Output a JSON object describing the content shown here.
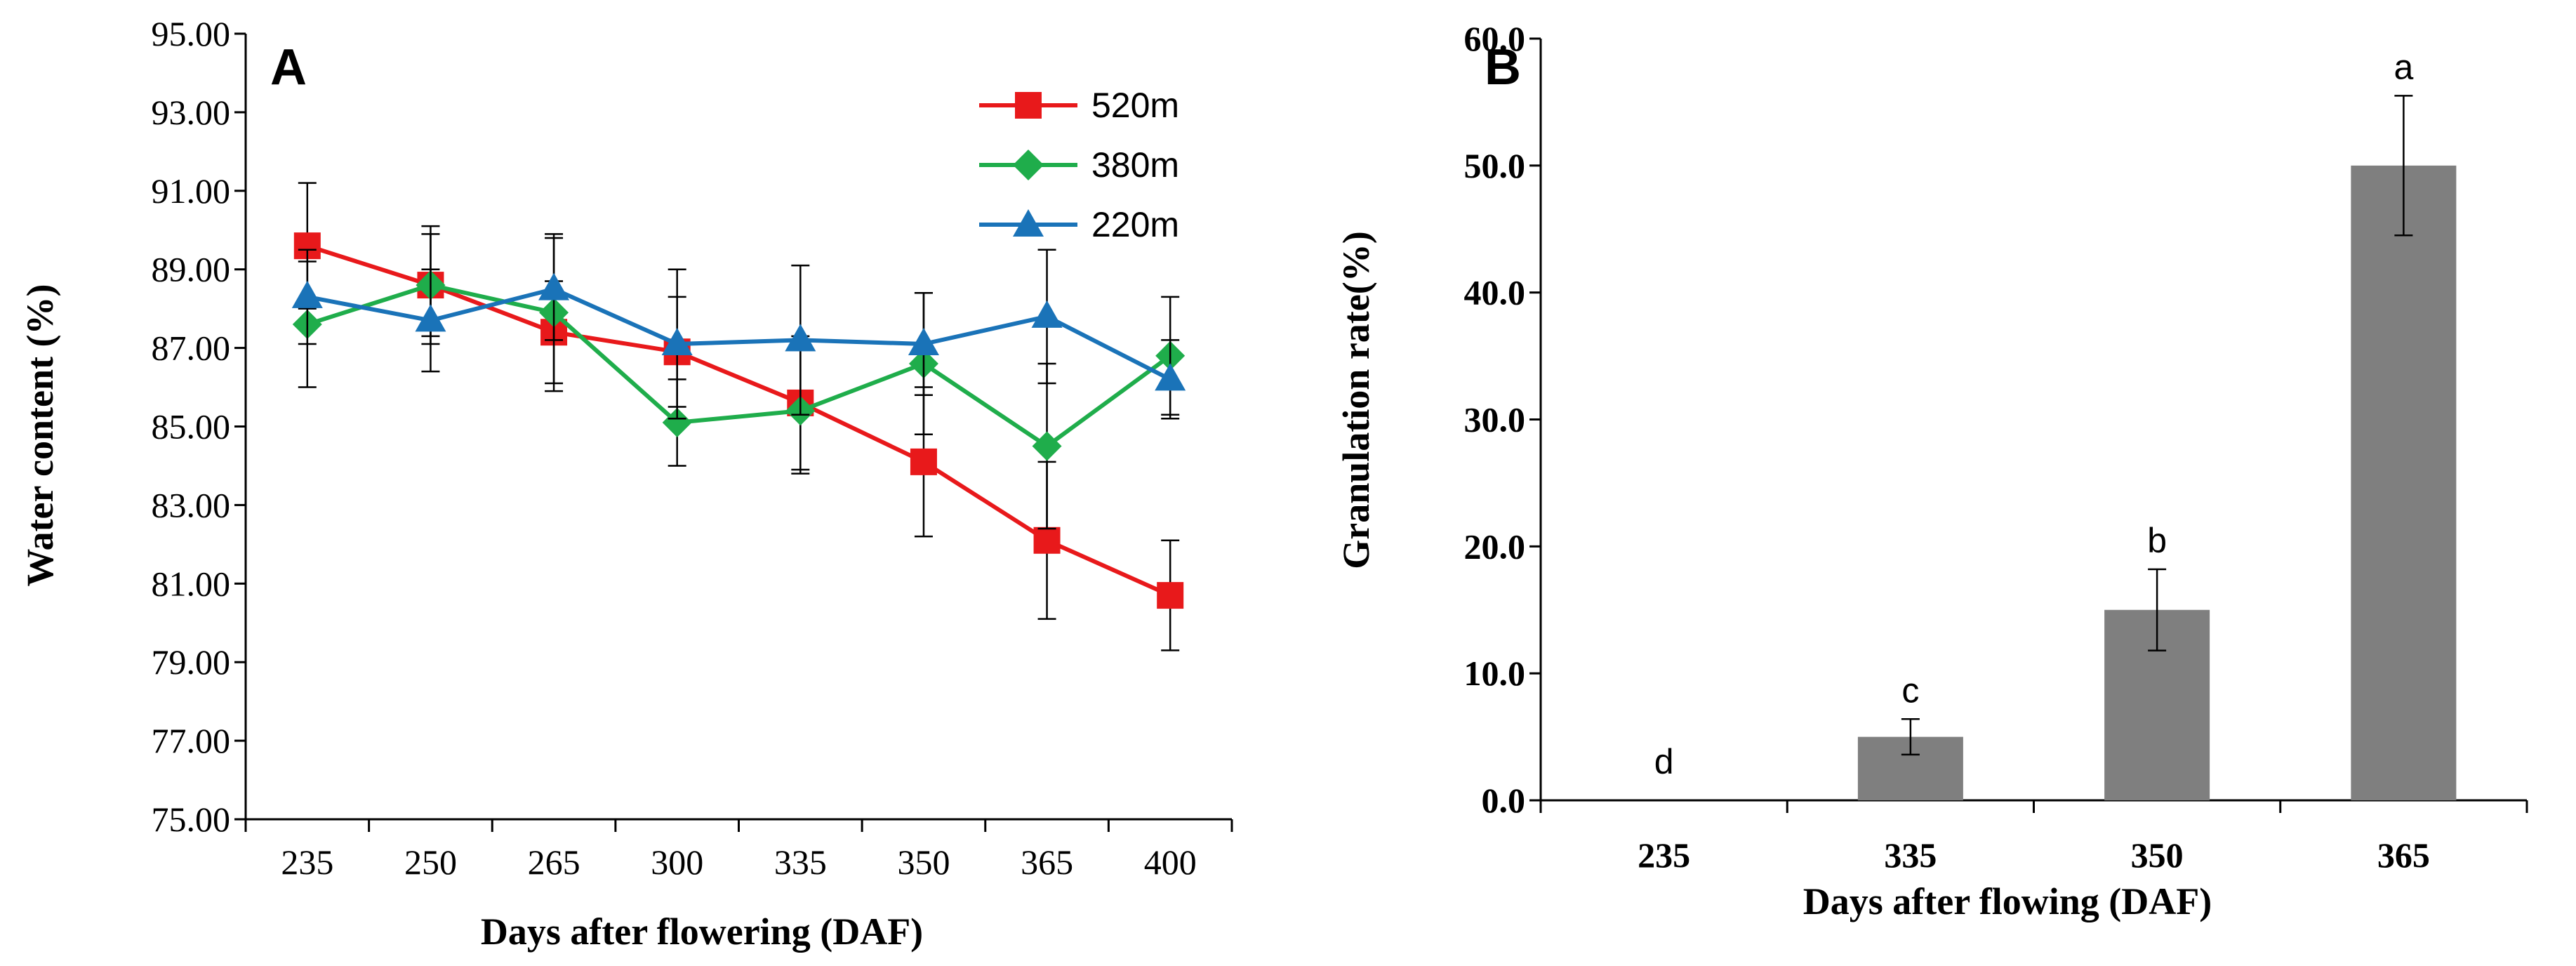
{
  "colors": {
    "s520": "#e8191b",
    "s380": "#1fad4b",
    "s220": "#1a73b8",
    "bar": "#7f7f7f",
    "axis": "#000000"
  },
  "chart_data": [
    {
      "type": "line",
      "panel_label": "A",
      "xlabel": "Days after flowering (DAF)",
      "ylabel": "Water content (%)",
      "categories": [
        "235",
        "250",
        "265",
        "300",
        "335",
        "350",
        "365",
        "400"
      ],
      "ylim": [
        75.0,
        95.0
      ],
      "yticks": [
        "75.00",
        "77.00",
        "79.00",
        "81.00",
        "83.00",
        "85.00",
        "87.00",
        "89.00",
        "91.00",
        "93.00",
        "95.00"
      ],
      "legend_position": "top-right",
      "series": [
        {
          "name": "520m",
          "marker": "square",
          "color": "#e8191b",
          "values": [
            89.6,
            88.6,
            87.4,
            86.9,
            85.6,
            84.1,
            82.1,
            80.7
          ],
          "errors": [
            1.6,
            1.5,
            1.3,
            1.4,
            1.7,
            1.9,
            2.0,
            1.4
          ]
        },
        {
          "name": "380m",
          "marker": "diamond",
          "color": "#1fad4b",
          "values": [
            87.6,
            88.6,
            87.9,
            85.1,
            85.4,
            86.6,
            84.5,
            86.8
          ],
          "errors": [
            1.6,
            1.3,
            2.0,
            1.1,
            1.6,
            1.8,
            2.1,
            1.5
          ]
        },
        {
          "name": "220m",
          "marker": "triangle",
          "color": "#1a73b8",
          "values": [
            88.3,
            87.7,
            88.5,
            87.1,
            87.2,
            87.1,
            87.8,
            86.2
          ],
          "errors": [
            1.2,
            1.3,
            1.3,
            1.9,
            1.9,
            1.3,
            1.7,
            1.0
          ]
        }
      ]
    },
    {
      "type": "bar",
      "panel_label": "B",
      "xlabel": "Days after flowing (DAF)",
      "ylabel": "Granulation rate(%)",
      "categories": [
        "235",
        "335",
        "350",
        "365"
      ],
      "values": [
        0.0,
        5.0,
        15.0,
        50.0
      ],
      "errors": [
        0.0,
        1.4,
        3.2,
        5.5
      ],
      "significance": [
        "d",
        "c",
        "b",
        "a"
      ],
      "ylim": [
        0.0,
        60.0
      ],
      "yticks": [
        "0.0",
        "10.0",
        "20.0",
        "30.0",
        "40.0",
        "50.0",
        "60.0"
      ]
    }
  ]
}
